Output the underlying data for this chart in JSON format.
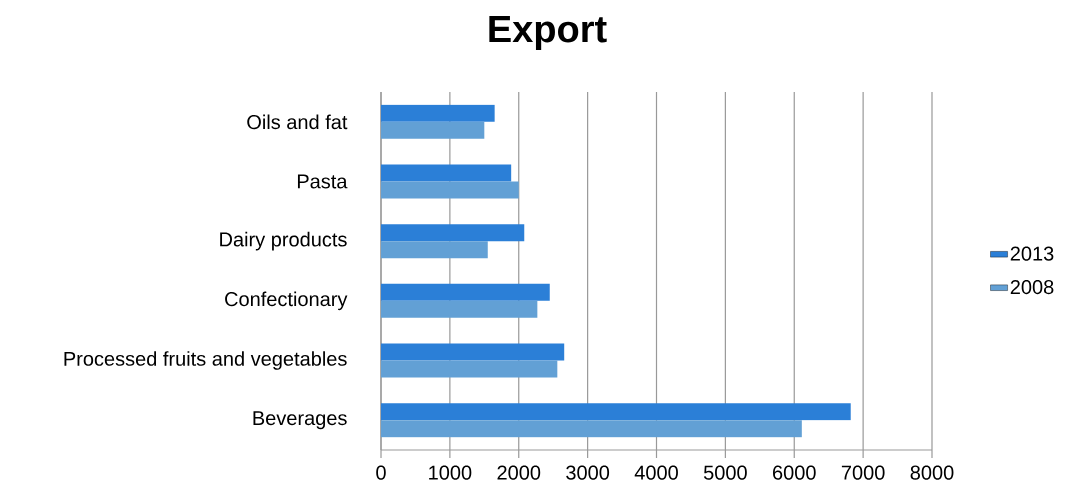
{
  "chart_data": {
    "type": "bar",
    "orientation": "horizontal",
    "title": "Export",
    "categories": [
      "Oils and fat",
      "Pasta",
      "Dairy products",
      "Confectionary",
      "Processed fruits and vegetables",
      "Beverages"
    ],
    "series": [
      {
        "name": "2013",
        "color": "#2b7fd7",
        "values": [
          1650,
          1890,
          2080,
          2450,
          2660,
          6820
        ]
      },
      {
        "name": "2008",
        "color": "#62a0d5",
        "values": [
          1500,
          2000,
          1550,
          2270,
          2560,
          6110
        ]
      }
    ],
    "xlim": [
      0,
      8000
    ],
    "xticks": [
      0,
      1000,
      2000,
      3000,
      4000,
      5000,
      6000,
      7000,
      8000
    ],
    "grid": "x",
    "legend": "right"
  }
}
